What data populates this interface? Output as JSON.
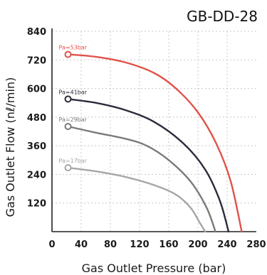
{
  "chart_data": {
    "type": "line",
    "title": "GB-DD-28",
    "xlabel": "Gas Outlet Pressure (bar)",
    "ylabel": "Gas Outlet Flow (nℓ/min)",
    "xlim": [
      0,
      280
    ],
    "ylim": [
      0,
      840
    ],
    "x_ticks": [
      "0",
      "40",
      "80",
      "120",
      "160",
      "200",
      "240",
      "280"
    ],
    "y_ticks": [
      "120",
      "240",
      "360",
      "480",
      "600",
      "720",
      "840"
    ],
    "grid": true,
    "series": [
      {
        "name": "Pa=17bar",
        "color": "#a6a6a6",
        "points": [
          [
            22,
            268
          ],
          [
            60,
            253
          ],
          [
            100,
            230
          ],
          [
            140,
            195
          ],
          [
            170,
            155
          ],
          [
            190,
            100
          ],
          [
            202,
            40
          ],
          [
            210,
            0
          ]
        ]
      },
      {
        "name": "Pa=29bar",
        "color": "#7a7a7a",
        "points": [
          [
            22,
            441
          ],
          [
            60,
            415
          ],
          [
            100,
            390
          ],
          [
            130,
            360
          ],
          [
            160,
            300
          ],
          [
            190,
            210
          ],
          [
            212,
            100
          ],
          [
            224,
            0
          ]
        ]
      },
      {
        "name": "Pa=41bar",
        "color": "#2b2b3b",
        "points": [
          [
            22,
            556
          ],
          [
            60,
            540
          ],
          [
            100,
            510
          ],
          [
            140,
            460
          ],
          [
            180,
            370
          ],
          [
            210,
            260
          ],
          [
            230,
            130
          ],
          [
            242,
            0
          ]
        ]
      },
      {
        "name": "Pa=53bar",
        "color": "#e0534a",
        "points": [
          [
            22,
            743
          ],
          [
            60,
            733
          ],
          [
            100,
            710
          ],
          [
            140,
            665
          ],
          [
            170,
            600
          ],
          [
            200,
            500
          ],
          [
            225,
            370
          ],
          [
            245,
            210
          ],
          [
            260,
            0
          ]
        ]
      }
    ]
  }
}
